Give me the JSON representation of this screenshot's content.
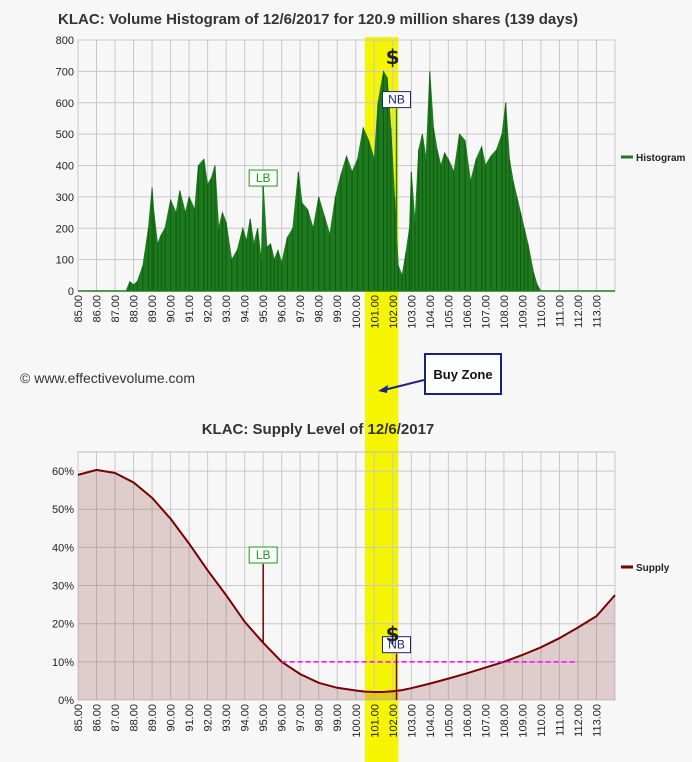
{
  "copyright": "© www.effectivevolume.com",
  "buy_zone": {
    "label": "Buy Zone",
    "from": 100.5,
    "to": 102.3
  },
  "x_ticks": [
    "85.00",
    "86.00",
    "87.00",
    "88.00",
    "89.00",
    "90.00",
    "91.00",
    "92.00",
    "93.00",
    "94.00",
    "95.00",
    "96.00",
    "97.00",
    "98.00",
    "99.00",
    "100.00",
    "101.00",
    "102.00",
    "103.00",
    "104.00",
    "105.00",
    "106.00",
    "107.00",
    "108.00",
    "109.00",
    "110.00",
    "111.00",
    "112.00",
    "113.00"
  ],
  "markers": {
    "lb": "LB",
    "nb": "NB",
    "dollar": "$"
  },
  "chart_data": [
    {
      "type": "area",
      "title": "KLAC: Volume Histogram of 12/6/2017 for 120.9 million shares (139 days)",
      "xlabel": "",
      "ylabel": "",
      "xlim": [
        85,
        114
      ],
      "ylim": [
        0,
        800
      ],
      "y_ticks": [
        0,
        100,
        200,
        300,
        400,
        500,
        600,
        700,
        800
      ],
      "grid": true,
      "legend_position": "right",
      "series": [
        {
          "name": "Histogram",
          "color": "#1e7a1e",
          "x": [
            85.0,
            86.0,
            87.0,
            87.6,
            87.8,
            88.0,
            88.2,
            88.5,
            88.8,
            89.0,
            89.1,
            89.3,
            89.5,
            89.7,
            90.0,
            90.3,
            90.5,
            90.8,
            91.0,
            91.3,
            91.5,
            91.8,
            92.0,
            92.2,
            92.4,
            92.6,
            92.8,
            93.0,
            93.3,
            93.6,
            93.9,
            94.1,
            94.3,
            94.5,
            94.7,
            94.9,
            95.0,
            95.2,
            95.4,
            95.6,
            95.8,
            96.0,
            96.3,
            96.6,
            96.9,
            97.1,
            97.4,
            97.7,
            98.0,
            98.3,
            98.6,
            98.9,
            99.2,
            99.5,
            99.8,
            100.1,
            100.4,
            100.7,
            101.0,
            101.2,
            101.5,
            101.7,
            101.9,
            102.1,
            102.3,
            102.5,
            102.7,
            102.9,
            103.0,
            103.2,
            103.4,
            103.6,
            103.8,
            104.0,
            104.2,
            104.4,
            104.6,
            104.8,
            105.0,
            105.3,
            105.6,
            105.9,
            106.2,
            106.5,
            106.8,
            107.0,
            107.3,
            107.6,
            107.9,
            108.1,
            108.3,
            108.5,
            108.7,
            108.9,
            109.1,
            109.3,
            109.6,
            109.8,
            110.0,
            111.0,
            114.0
          ],
          "values": [
            0,
            0,
            0,
            0,
            30,
            20,
            30,
            80,
            200,
            330,
            250,
            150,
            180,
            200,
            290,
            250,
            320,
            250,
            300,
            260,
            400,
            420,
            340,
            360,
            400,
            200,
            250,
            220,
            100,
            130,
            200,
            160,
            230,
            150,
            200,
            100,
            340,
            140,
            150,
            100,
            130,
            90,
            170,
            200,
            380,
            280,
            260,
            200,
            300,
            240,
            180,
            300,
            370,
            430,
            380,
            420,
            520,
            480,
            420,
            600,
            700,
            680,
            520,
            300,
            80,
            50,
            120,
            200,
            380,
            220,
            450,
            500,
            420,
            700,
            520,
            450,
            400,
            440,
            420,
            380,
            500,
            480,
            350,
            420,
            460,
            400,
            430,
            450,
            500,
            600,
            420,
            350,
            300,
            250,
            200,
            150,
            60,
            20,
            0,
            0,
            0
          ]
        }
      ],
      "annotations": [
        {
          "label": "LB",
          "x": 95.0,
          "y": 360
        },
        {
          "label": "NB",
          "x": 102.2,
          "y": 610
        },
        {
          "label": "$",
          "x": 102.1,
          "y": 730
        }
      ]
    },
    {
      "type": "area",
      "title": "KLAC: Supply Level of 12/6/2017",
      "xlabel": "",
      "ylabel": "",
      "xlim": [
        85,
        114
      ],
      "ylim": [
        0,
        65
      ],
      "y_ticks": [
        0,
        10,
        20,
        30,
        40,
        50,
        60
      ],
      "y_tick_labels": [
        "0%",
        "10%",
        "20%",
        "30%",
        "40%",
        "50%",
        "60%"
      ],
      "grid": true,
      "legend_position": "right",
      "series": [
        {
          "name": "Supply",
          "color": "#7a0000",
          "x": [
            85.0,
            86.0,
            87.0,
            88.0,
            89.0,
            90.0,
            91.0,
            92.0,
            93.0,
            94.0,
            95.0,
            96.0,
            97.0,
            98.0,
            99.0,
            100.0,
            100.5,
            101.0,
            101.5,
            102.0,
            102.5,
            103.0,
            104.0,
            105.0,
            106.0,
            107.0,
            108.0,
            109.0,
            110.0,
            111.0,
            112.0,
            113.0,
            114.0
          ],
          "values": [
            59,
            60.3,
            59.5,
            57,
            53,
            47.5,
            41,
            34,
            27.5,
            20.5,
            15,
            10,
            6.8,
            4.5,
            3.2,
            2.5,
            2.2,
            2.1,
            2.1,
            2.3,
            2.6,
            3.1,
            4.3,
            5.6,
            7.0,
            8.5,
            10.0,
            11.8,
            13.8,
            16.2,
            19.0,
            22.0,
            27.5
          ]
        }
      ],
      "reference_line": {
        "value": 10,
        "from": 96.0,
        "to": 112.0,
        "color": "#ff00ff"
      },
      "annotations": [
        {
          "label": "LB",
          "x": 95.0,
          "y": 38
        },
        {
          "label": "NB",
          "x": 102.2,
          "y": 14.5
        },
        {
          "label": "$",
          "x": 102.1,
          "y": 16
        }
      ]
    }
  ]
}
